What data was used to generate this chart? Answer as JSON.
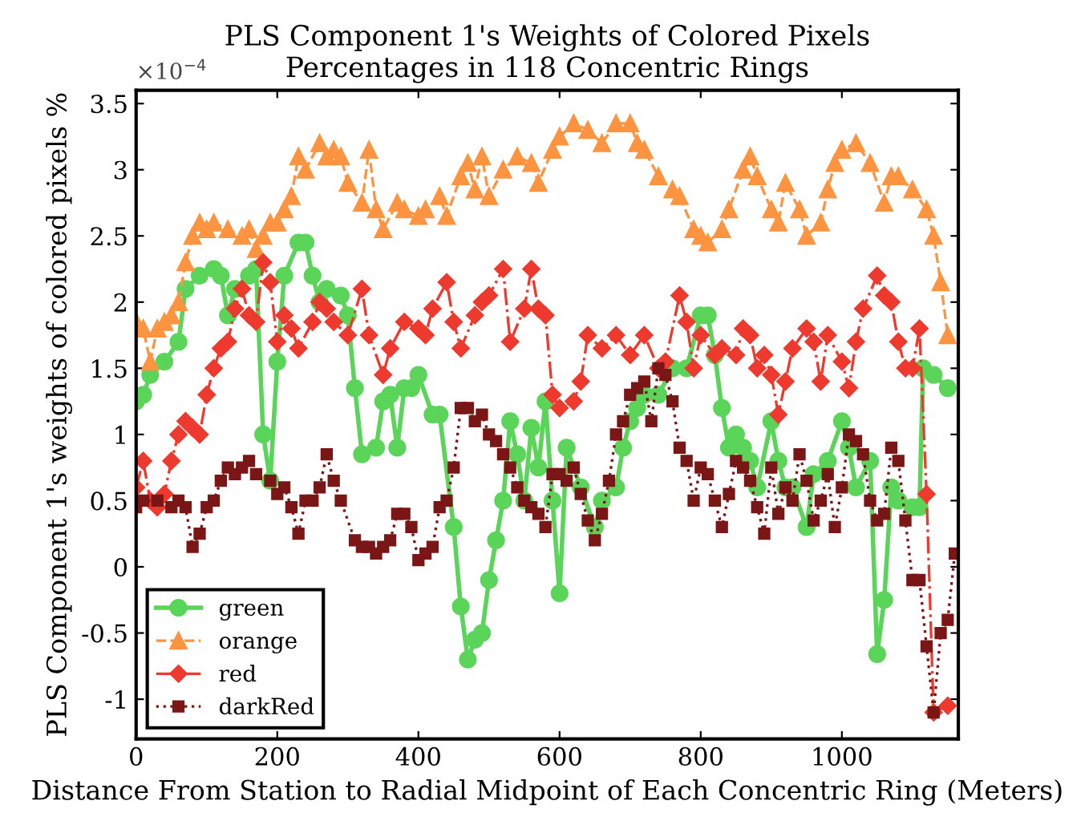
{
  "chart_data": {
    "type": "line",
    "title": "PLS Component 1's Weights of Colored Pixels\nPercentages in 118 Concentric Rings",
    "xlabel": "Distance From Station to Radial Midpoint of Each Concentric Ring (Meters)",
    "ylabel": "PLS Component 1's weights of colored pixels %",
    "annotations": [
      "×10$^{−4}$"
    ],
    "xlim": [
      0,
      1165
    ],
    "xticks": [
      0,
      200,
      400,
      600,
      800,
      1000
    ],
    "ylim": [
      -1.3,
      3.6
    ],
    "yticks": [
      -1,
      -0.5,
      0,
      0.5,
      1,
      1.5,
      2,
      2.5,
      3,
      3.5
    ],
    "grid": false,
    "legend": "bottom left",
    "series": [
      {
        "name": "green",
        "color": "#5ad55a",
        "marker": "circle",
        "line_style": "solid",
        "x": [
          0,
          10,
          20,
          40,
          60,
          70,
          90,
          110,
          120,
          130,
          140,
          160,
          170,
          180,
          190,
          200,
          210,
          230,
          240,
          250,
          260,
          270,
          290,
          300,
          310,
          320,
          340,
          350,
          360,
          370,
          380,
          390,
          400,
          420,
          430,
          450,
          460,
          470,
          480,
          490,
          500,
          510,
          520,
          530,
          540,
          550,
          560,
          570,
          580,
          590,
          600,
          610,
          630,
          650,
          660,
          680,
          690,
          700,
          710,
          720,
          740,
          760,
          780,
          800,
          810,
          820,
          830,
          840,
          850,
          860,
          870,
          880,
          900,
          910,
          920,
          930,
          950,
          960,
          980,
          1000,
          1010,
          1020,
          1040,
          1050,
          1060,
          1070,
          1080,
          1100,
          1110,
          1115,
          1130,
          1150
        ],
        "values": [
          1.25,
          1.3,
          1.45,
          1.55,
          1.7,
          2.1,
          2.2,
          2.25,
          2.2,
          1.9,
          2.1,
          2.2,
          2.25,
          1.0,
          0.65,
          1.55,
          2.2,
          2.45,
          2.45,
          2.2,
          2.0,
          2.1,
          2.05,
          1.9,
          1.35,
          0.85,
          0.9,
          1.25,
          1.3,
          0.9,
          1.35,
          1.35,
          1.45,
          1.15,
          1.15,
          0.3,
          -0.3,
          -0.7,
          -0.55,
          -0.5,
          -0.1,
          0.2,
          0.5,
          1.1,
          0.85,
          0.5,
          1.05,
          0.75,
          1.25,
          0.5,
          -0.2,
          0.9,
          0.6,
          0.3,
          0.5,
          0.6,
          0.9,
          1.1,
          1.2,
          1.3,
          1.3,
          1.5,
          1.5,
          1.9,
          1.9,
          1.6,
          1.2,
          0.9,
          1.0,
          0.9,
          0.8,
          0.6,
          1.1,
          0.8,
          0.6,
          0.6,
          0.3,
          0.7,
          0.8,
          1.1,
          0.9,
          0.6,
          0.8,
          -0.66,
          -0.25,
          0.6,
          0.5,
          0.45,
          0.45,
          1.5,
          1.45,
          1.35
        ]
      },
      {
        "name": "orange",
        "color": "#ff9440",
        "marker": "triangle",
        "line_style": "dashed",
        "x": [
          0,
          10,
          20,
          30,
          40,
          50,
          60,
          70,
          80,
          90,
          100,
          110,
          130,
          150,
          160,
          170,
          180,
          190,
          200,
          210,
          220,
          230,
          240,
          260,
          270,
          280,
          290,
          300,
          320,
          330,
          340,
          350,
          370,
          380,
          400,
          410,
          430,
          440,
          460,
          470,
          480,
          490,
          500,
          520,
          540,
          560,
          570,
          590,
          600,
          620,
          640,
          660,
          680,
          700,
          710,
          720,
          740,
          760,
          770,
          790,
          800,
          810,
          830,
          840,
          860,
          870,
          880,
          900,
          910,
          920,
          940,
          950,
          970,
          980,
          990,
          1000,
          1020,
          1040,
          1060,
          1070,
          1080,
          1100,
          1120,
          1130,
          1140,
          1150
        ],
        "values": [
          1.85,
          1.8,
          1.55,
          1.8,
          1.85,
          1.9,
          2.0,
          2.3,
          2.5,
          2.6,
          2.55,
          2.6,
          2.55,
          2.5,
          2.55,
          2.4,
          2.5,
          2.6,
          2.6,
          2.7,
          2.8,
          3.1,
          3.0,
          3.2,
          3.1,
          3.15,
          3.1,
          2.9,
          2.75,
          3.15,
          2.7,
          2.55,
          2.75,
          2.7,
          2.65,
          2.7,
          2.8,
          2.65,
          2.95,
          3.05,
          2.85,
          3.1,
          2.8,
          3.0,
          3.1,
          3.05,
          2.9,
          3.15,
          3.25,
          3.35,
          3.3,
          3.2,
          3.35,
          3.35,
          3.2,
          3.15,
          2.95,
          2.85,
          2.8,
          2.55,
          2.5,
          2.45,
          2.55,
          2.7,
          3.0,
          3.1,
          2.95,
          2.7,
          2.6,
          2.9,
          2.7,
          2.5,
          2.6,
          2.85,
          3.05,
          3.15,
          3.2,
          3.05,
          2.75,
          2.95,
          2.95,
          2.85,
          2.7,
          2.5,
          2.15,
          1.75
        ]
      },
      {
        "name": "red",
        "color": "#ee3a2e",
        "marker": "diamond",
        "line_style": "dashdot",
        "x": [
          0,
          10,
          20,
          30,
          40,
          50,
          60,
          70,
          80,
          90,
          100,
          110,
          120,
          130,
          140,
          150,
          160,
          170,
          180,
          190,
          200,
          210,
          220,
          230,
          250,
          260,
          270,
          280,
          300,
          320,
          330,
          350,
          360,
          380,
          400,
          410,
          420,
          440,
          450,
          460,
          480,
          490,
          500,
          520,
          530,
          550,
          560,
          570,
          580,
          590,
          600,
          620,
          630,
          640,
          660,
          680,
          700,
          720,
          740,
          750,
          770,
          780,
          790,
          800,
          820,
          830,
          850,
          860,
          870,
          880,
          890,
          900,
          910,
          920,
          930,
          950,
          960,
          970,
          980,
          1000,
          1010,
          1020,
          1030,
          1050,
          1060,
          1070,
          1080,
          1090,
          1100,
          1110,
          1120,
          1130,
          1150
        ],
        "values": [
          0.6,
          0.8,
          0.5,
          0.45,
          0.55,
          0.8,
          1.0,
          1.1,
          1.05,
          1.0,
          1.3,
          1.5,
          1.65,
          1.7,
          1.95,
          2.1,
          1.9,
          1.85,
          2.3,
          2.15,
          1.7,
          1.9,
          1.8,
          1.65,
          1.85,
          2.0,
          1.95,
          1.85,
          1.75,
          2.1,
          1.75,
          1.45,
          1.65,
          1.85,
          1.8,
          1.75,
          1.95,
          2.15,
          1.85,
          1.65,
          1.9,
          2.0,
          2.05,
          2.25,
          1.7,
          1.95,
          2.25,
          1.95,
          1.9,
          1.3,
          1.2,
          1.25,
          1.4,
          1.75,
          1.65,
          1.75,
          1.6,
          1.75,
          1.5,
          1.55,
          2.05,
          1.85,
          1.5,
          1.75,
          1.6,
          1.65,
          1.6,
          1.8,
          1.75,
          1.5,
          1.6,
          1.45,
          1.15,
          1.4,
          1.65,
          1.8,
          1.7,
          1.4,
          1.75,
          1.55,
          1.35,
          1.7,
          1.95,
          2.2,
          2.05,
          2.0,
          1.7,
          1.5,
          1.5,
          1.8,
          0.55,
          -1.1,
          -1.05
        ]
      },
      {
        "name": "darkRed",
        "color": "#7b1616",
        "marker": "square",
        "line_style": "dotted",
        "x": [
          0,
          10,
          30,
          50,
          60,
          70,
          80,
          90,
          100,
          110,
          120,
          130,
          140,
          150,
          160,
          170,
          190,
          200,
          210,
          220,
          230,
          240,
          250,
          260,
          270,
          280,
          290,
          310,
          320,
          330,
          340,
          350,
          360,
          370,
          380,
          390,
          400,
          410,
          420,
          430,
          440,
          450,
          460,
          470,
          480,
          490,
          500,
          510,
          520,
          530,
          540,
          550,
          560,
          570,
          580,
          590,
          600,
          610,
          620,
          630,
          640,
          650,
          660,
          670,
          680,
          690,
          700,
          710,
          720,
          730,
          740,
          750,
          760,
          770,
          780,
          790,
          800,
          810,
          820,
          830,
          840,
          850,
          860,
          870,
          880,
          890,
          900,
          910,
          920,
          930,
          940,
          950,
          960,
          970,
          980,
          990,
          1000,
          1010,
          1020,
          1030,
          1040,
          1050,
          1060,
          1070,
          1080,
          1090,
          1100,
          1110,
          1120,
          1130,
          1140,
          1150,
          1160
        ],
        "values": [
          0.45,
          0.5,
          0.5,
          0.45,
          0.5,
          0.45,
          0.15,
          0.25,
          0.45,
          0.5,
          0.65,
          0.75,
          0.7,
          0.75,
          0.8,
          0.7,
          0.65,
          0.55,
          0.6,
          0.45,
          0.25,
          0.5,
          0.5,
          0.6,
          0.85,
          0.65,
          0.5,
          0.2,
          0.15,
          0.15,
          0.1,
          0.15,
          0.2,
          0.4,
          0.4,
          0.3,
          0.05,
          0.1,
          0.15,
          0.45,
          0.5,
          0.75,
          1.2,
          1.2,
          1.1,
          1.15,
          1.0,
          0.95,
          0.85,
          0.75,
          0.6,
          0.5,
          0.45,
          0.4,
          0.3,
          0.7,
          0.7,
          0.65,
          0.75,
          0.55,
          0.35,
          0.2,
          0.4,
          0.65,
          1.0,
          1.1,
          1.3,
          1.35,
          1.4,
          1.1,
          1.5,
          1.45,
          1.25,
          0.9,
          0.8,
          0.5,
          0.75,
          0.7,
          0.5,
          0.3,
          0.55,
          0.8,
          0.75,
          0.65,
          0.45,
          0.25,
          0.75,
          0.4,
          0.6,
          0.5,
          0.85,
          0.65,
          0.35,
          0.5,
          0.7,
          0.3,
          0.6,
          1.0,
          0.95,
          0.85,
          0.5,
          0.35,
          0.4,
          0.9,
          0.8,
          0.35,
          -0.1,
          -0.1,
          -0.6,
          -1.1,
          -0.5,
          -0.4,
          0.1
        ]
      }
    ]
  }
}
